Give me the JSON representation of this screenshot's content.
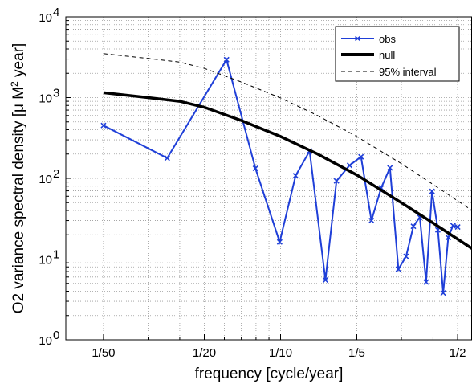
{
  "chart_data": {
    "type": "line",
    "xlabel": "frequency [cycle/year]",
    "ylabel_text": "O2 variance spectral density [μ M",
    "ylabel_sup": "2",
    "ylabel_end": " year]",
    "x_scale": "log",
    "y_scale": "log",
    "xlim": [
      0.0142,
      0.57
    ],
    "ylim": [
      1,
      10000
    ],
    "grid": true,
    "legend_position": "top-right",
    "x_ticks": [
      {
        "value": 0.02,
        "label": "1/50"
      },
      {
        "value": 0.05,
        "label": "1/20"
      },
      {
        "value": 0.1,
        "label": "1/10"
      },
      {
        "value": 0.2,
        "label": "1/5"
      },
      {
        "value": 0.5,
        "label": "1/2"
      }
    ],
    "y_ticks": [
      {
        "value": 1,
        "label": "10",
        "exp": "0"
      },
      {
        "value": 10,
        "label": "10",
        "exp": "1"
      },
      {
        "value": 100,
        "label": "10",
        "exp": "2"
      },
      {
        "value": 1000,
        "label": "10",
        "exp": "3"
      },
      {
        "value": 10000,
        "label": "10",
        "exp": "4"
      }
    ],
    "series": [
      {
        "name": "obs",
        "style": "line-x-markers",
        "color": "#1f3fd8",
        "x": [
          0.02,
          0.0357,
          0.0612,
          0.0796,
          0.0992,
          0.1147,
          0.1302,
          0.1504,
          0.1663,
          0.1873,
          0.2078,
          0.2284,
          0.2496,
          0.2704,
          0.2919,
          0.3131,
          0.3345,
          0.3546,
          0.3756,
          0.3964,
          0.4179,
          0.4386,
          0.4594,
          0.4796,
          0.5002
        ],
        "y": [
          452,
          178,
          2950,
          133,
          16.3,
          108,
          218,
          5.5,
          93,
          145,
          185,
          30,
          76,
          135,
          7.5,
          10.8,
          25.5,
          33,
          5.2,
          69,
          23,
          3.8,
          18.5,
          26,
          25
        ]
      },
      {
        "name": "null",
        "style": "thick-line",
        "color": "#000000",
        "x": [
          0.02,
          0.03,
          0.04,
          0.05,
          0.07,
          0.1,
          0.14,
          0.2,
          0.3,
          0.4,
          0.57
        ],
        "y": [
          1150,
          1000,
          900,
          760,
          520,
          330,
          200,
          110,
          50,
          28,
          13.5
        ]
      },
      {
        "name": "95% interval",
        "style": "dashed-line",
        "color": "#000000",
        "x": [
          0.02,
          0.03,
          0.04,
          0.05,
          0.07,
          0.1,
          0.14,
          0.2,
          0.3,
          0.4,
          0.57
        ],
        "y": [
          3500,
          3050,
          2750,
          2300,
          1560,
          990,
          600,
          330,
          152,
          84,
          40
        ]
      }
    ]
  }
}
